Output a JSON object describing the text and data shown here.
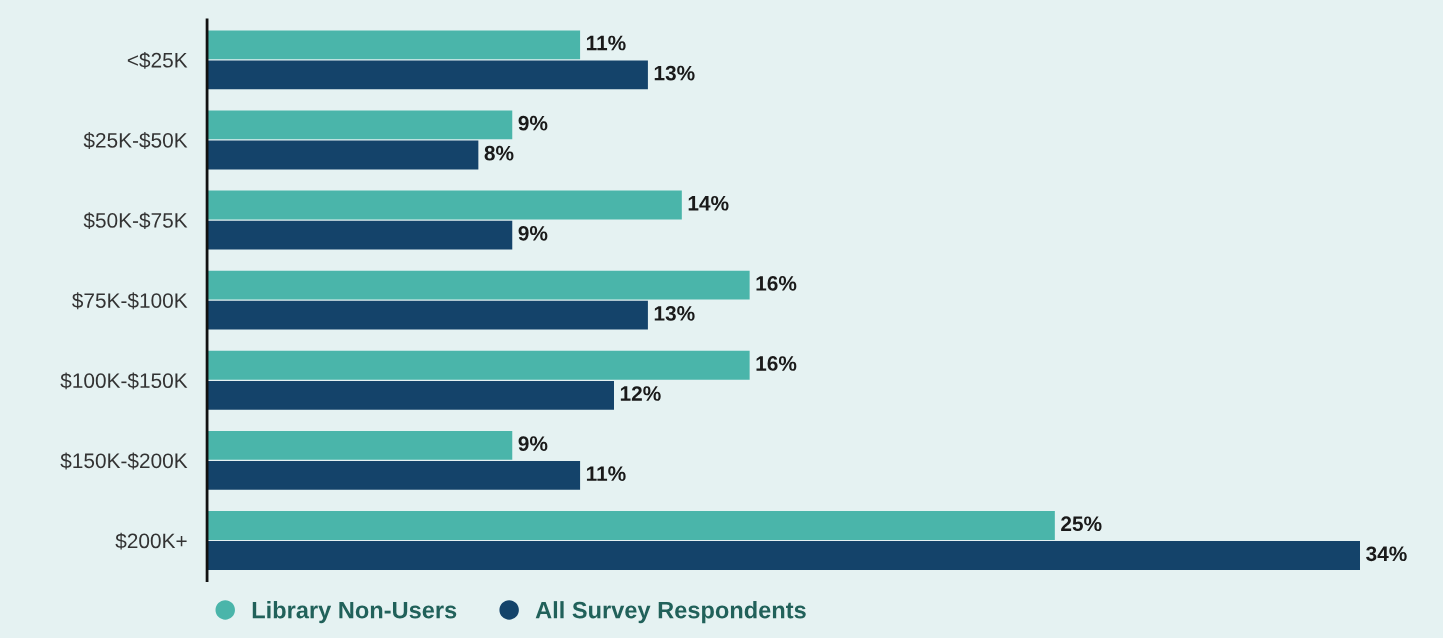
{
  "chart_data": {
    "type": "bar",
    "orientation": "horizontal",
    "categories": [
      "<$25K",
      "$25K-$50K",
      "$50K-$75K",
      "$75K-$100K",
      "$100K-$150K",
      "$150K-$200K",
      "$200K+"
    ],
    "series": [
      {
        "name": "Library Non-Users",
        "color": "#4ab5aa",
        "values": [
          11,
          9,
          14,
          16,
          16,
          9,
          25
        ],
        "value_labels": [
          "11%",
          "9%",
          "14%",
          "16%",
          "16%",
          "9%",
          "25%"
        ]
      },
      {
        "name": "All Survey Respondents",
        "color": "#14436a",
        "values": [
          13,
          8,
          9,
          13,
          12,
          11,
          34
        ],
        "value_labels": [
          "13%",
          "8%",
          "9%",
          "13%",
          "12%",
          "11%",
          "34%"
        ]
      }
    ],
    "legend": "bottom",
    "tick_labels": "y",
    "grid": false
  }
}
